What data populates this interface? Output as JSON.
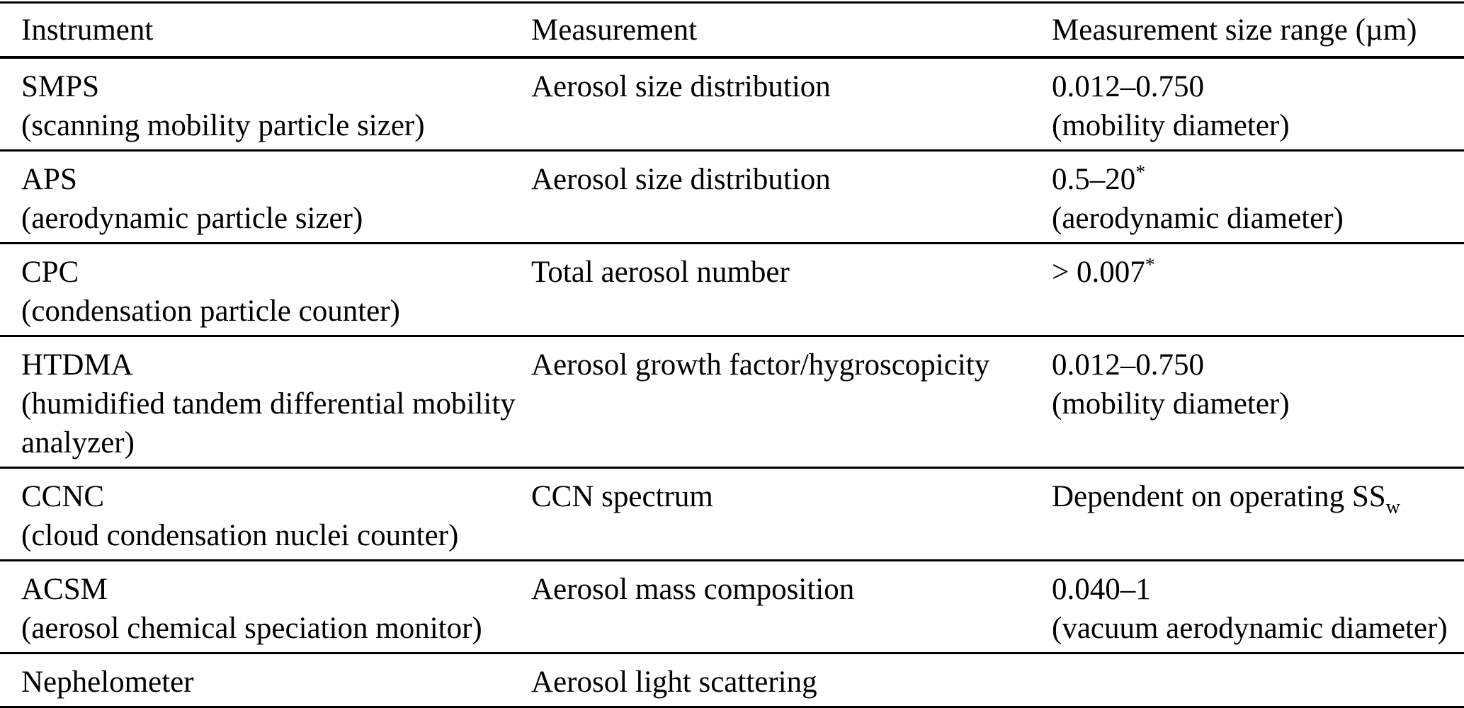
{
  "colors": {
    "background": "#ffffff",
    "text": "#000000",
    "rule": "#000000"
  },
  "table": {
    "headers": {
      "instrument": "Instrument",
      "measurement": "Measurement",
      "size_range": "Measurement size range (µm)"
    },
    "rows": [
      {
        "name": "SMPS",
        "name_detail": "(scanning mobility particle sizer)",
        "measurement": "Aerosol size distribution",
        "range_main": "0.012–0.750",
        "range_sup": "",
        "range_sub": "",
        "range_detail": "(mobility diameter)"
      },
      {
        "name": "APS",
        "name_detail": "(aerodynamic particle sizer)",
        "measurement": "Aerosol size distribution",
        "range_main": "0.5–20",
        "range_sup": "*",
        "range_sub": "",
        "range_detail": "(aerodynamic diameter)"
      },
      {
        "name": "CPC",
        "name_detail": "(condensation particle counter)",
        "measurement": "Total aerosol number",
        "range_main": "> 0.007",
        "range_sup": "*",
        "range_sub": "",
        "range_detail": ""
      },
      {
        "name": "HTDMA",
        "name_detail": "(humidified tandem differential mobility analyzer)",
        "measurement": "Aerosol growth factor/hygroscopicity",
        "range_main": "0.012–0.750",
        "range_sup": "",
        "range_sub": "",
        "range_detail": "(mobility diameter)"
      },
      {
        "name": "CCNC",
        "name_detail": "(cloud condensation nuclei counter)",
        "measurement": "CCN spectrum",
        "range_main": "Dependent on operating SS",
        "range_sup": "",
        "range_sub": "w",
        "range_detail": ""
      },
      {
        "name": "ACSM",
        "name_detail": "(aerosol chemical speciation monitor)",
        "measurement": "Aerosol mass composition",
        "range_main": "0.040–1",
        "range_sup": "",
        "range_sub": "",
        "range_detail": "(vacuum aerodynamic diameter)"
      },
      {
        "name": "Nephelometer",
        "name_detail": "",
        "measurement": "Aerosol light scattering",
        "range_main": "",
        "range_sup": "",
        "range_sub": "",
        "range_detail": ""
      }
    ]
  }
}
